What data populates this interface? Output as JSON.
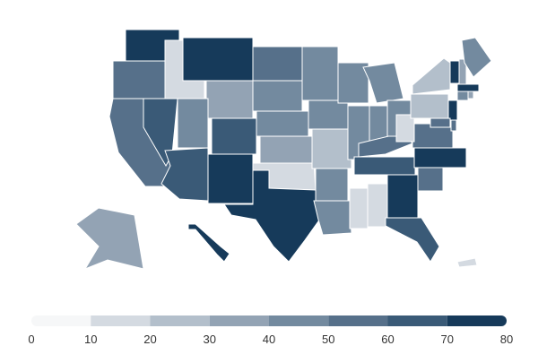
{
  "chart_data": {
    "type": "choropleth",
    "values": [
      75,
      55,
      50,
      65,
      15,
      75,
      35,
      45,
      65,
      75,
      65,
      55,
      45,
      45,
      35,
      15,
      75,
      45,
      45,
      25,
      45,
      45,
      45,
      45,
      15,
      15,
      45,
      45,
      55,
      65,
      45,
      75,
      65,
      55,
      75,
      55,
      15,
      25,
      25,
      75,
      30,
      45,
      75,
      45,
      35,
      75,
      55,
      55,
      35,
      75,
      15
    ],
    "lim": [
      0,
      80
    ],
    "legend": {
      "ticks": [
        0,
        10,
        20,
        30,
        40,
        50,
        60,
        70,
        80
      ],
      "colors": [
        "#f6f7f8",
        "#d4dae1",
        "#b3bfcb",
        "#93a3b4",
        "#738a9f",
        "#56708a",
        "#3a5a77",
        "#163a5a"
      ]
    }
  }
}
